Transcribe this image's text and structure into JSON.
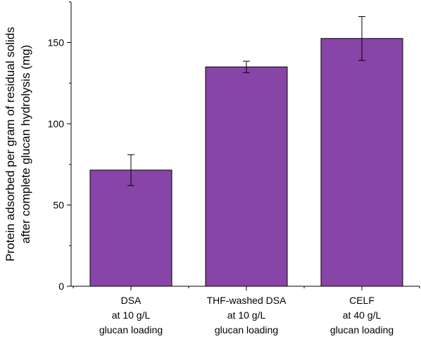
{
  "chart_data": {
    "type": "bar",
    "categories": [
      [
        "DSA",
        "at 10 g/L",
        "glucan loading"
      ],
      [
        "THF-washed DSA",
        "at 10 g/L",
        "glucan loading"
      ],
      [
        "CELF",
        "at 40 g/L",
        "glucan loading"
      ]
    ],
    "values": [
      71.5,
      135,
      152.5
    ],
    "errors": [
      9.5,
      3.5,
      13.5
    ],
    "ylabel": [
      "Protein adsorbed per gram of residual solids",
      "after complete glucan hydrolysis (mg)"
    ],
    "xlabel": "",
    "ylim": [
      0,
      175
    ],
    "yticks": [
      0,
      50,
      100,
      150
    ],
    "bar_color": "#8845a8",
    "bar_edge_color": "#000000",
    "grid": false,
    "legend": "none"
  }
}
